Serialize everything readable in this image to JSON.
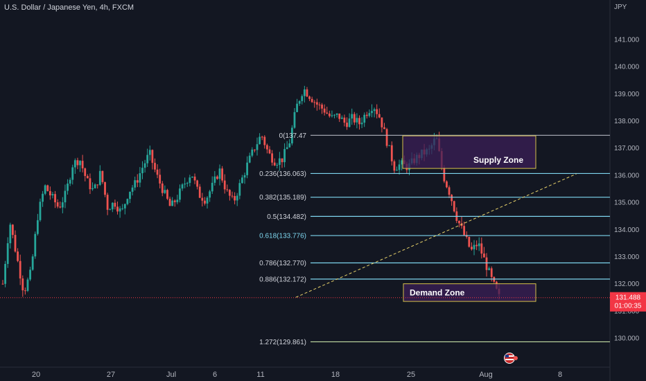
{
  "header": {
    "title": "U.S. Dollar / Japanese Yen, 4h, FXCM",
    "currency": "JPY"
  },
  "colors": {
    "background": "#131722",
    "up": "#26a69a",
    "down": "#ef5350",
    "fib_line": "#7ed6ef",
    "fib_base": "#b2b5be",
    "fib_ext": "#c5e1a5",
    "zone_fill": "#3b1f57",
    "zone_border": "#d6c14a",
    "price_tag": "#f23645",
    "trend_dashed": "#e8d26a"
  },
  "chart_data": {
    "type": "candlestick",
    "ylim": [
      130.0,
      141.0
    ],
    "y_ticks": [
      "141.000",
      "140.000",
      "139.000",
      "138.000",
      "137.000",
      "136.000",
      "135.000",
      "134.000",
      "133.000",
      "132.000",
      "131.000",
      "130.000"
    ],
    "x_ticks": [
      "20",
      "27",
      "Jul",
      "6",
      "11",
      "18",
      "25",
      "Aug",
      "8"
    ],
    "current_price": {
      "value": "131.488",
      "countdown": "01:00:35"
    },
    "fib_levels": [
      {
        "label": "0(137.47",
        "value": 137.47
      },
      {
        "label": "0.236(136.063)",
        "value": 136.063
      },
      {
        "label": "0.382(135.189)",
        "value": 135.189
      },
      {
        "label": "0.5(134.482)",
        "value": 134.482
      },
      {
        "label": "0.618(133.776)",
        "value": 133.776
      },
      {
        "label": "0.786(132.770)",
        "value": 132.77
      },
      {
        "label": "0.886(132.172)",
        "value": 132.172
      },
      {
        "label": "1.272(129.861)",
        "value": 129.861
      }
    ],
    "zones": [
      {
        "label": "Supply Zone",
        "top": 137.45,
        "bottom": 136.25
      },
      {
        "label": "Demand Zone",
        "top": 132.0,
        "bottom": 131.35
      }
    ],
    "price_path": [
      132.0,
      134.3,
      133.0,
      131.7,
      132.4,
      134.5,
      135.6,
      135.2,
      134.8,
      135.3,
      136.4,
      136.6,
      135.8,
      135.4,
      136.1,
      134.8,
      135.0,
      134.6,
      135.4,
      135.7,
      136.3,
      136.8,
      136.0,
      135.4,
      134.8,
      135.2,
      135.7,
      136.1,
      135.3,
      135.1,
      135.6,
      136.2,
      135.4,
      135.0,
      135.7,
      136.4,
      137.0,
      137.5,
      136.8,
      136.5,
      136.6,
      137.2,
      138.5,
      139.2,
      138.9,
      138.6,
      138.4,
      138.1,
      138.2,
      137.9,
      138.1,
      137.9,
      138.3,
      138.6,
      138.1,
      137.2,
      136.3,
      136.4,
      136.3,
      136.6,
      136.8,
      136.9,
      137.4,
      136.0,
      135.3,
      134.4,
      133.8,
      133.2,
      133.5,
      132.8,
      132.1,
      131.5
    ],
    "trendline": {
      "from": {
        "t": 0.485,
        "price": 131.5
      },
      "to": {
        "t": 0.945,
        "price": 136.05
      }
    }
  }
}
